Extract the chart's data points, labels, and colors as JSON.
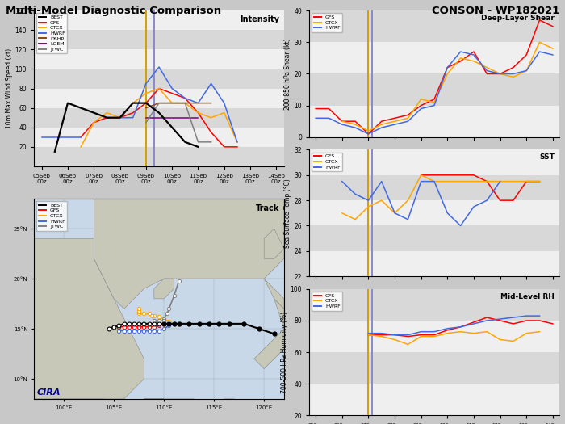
{
  "title_left": "Multi-Model Diagnostic Comparison",
  "title_right": "CONSON - WP182021",
  "x_labels": [
    "05Sep\n00z",
    "06Sep\n00z",
    "07Sep\n00z",
    "08Sep\n00z",
    "09Sep\n00z",
    "10Sep\n00z",
    "11Sep\n00z",
    "12Sep\n00z",
    "13Sep\n00z",
    "14Sep\n00z"
  ],
  "vline_gold": 4.0,
  "vline_blue": 4.3,
  "intensity": {
    "ylabel": "10m Max Wind Speed (kt)",
    "ylim": [
      0,
      160
    ],
    "yticks": [
      20,
      40,
      60,
      80,
      100,
      120,
      140,
      160
    ],
    "x_step": 0.5,
    "BEST": [
      null,
      15,
      65,
      60,
      55,
      50,
      50,
      65,
      65,
      55,
      40,
      25,
      20,
      null,
      null,
      null,
      null,
      null,
      null
    ],
    "GFS": [
      null,
      null,
      null,
      30,
      45,
      50,
      50,
      55,
      65,
      80,
      75,
      70,
      55,
      35,
      20,
      20,
      null,
      null,
      null
    ],
    "CTCX": [
      null,
      null,
      null,
      20,
      45,
      55,
      50,
      65,
      75,
      80,
      65,
      65,
      55,
      50,
      55,
      25,
      null,
      null,
      null
    ],
    "HWRF": [
      30,
      30,
      30,
      30,
      null,
      null,
      50,
      50,
      85,
      102,
      80,
      70,
      65,
      85,
      65,
      25,
      null,
      null,
      null
    ],
    "DSHP": [
      null,
      null,
      null,
      null,
      null,
      null,
      null,
      null,
      60,
      65,
      65,
      65,
      65,
      65,
      null,
      null,
      null,
      null,
      null
    ],
    "LGEM": [
      null,
      null,
      null,
      null,
      null,
      null,
      null,
      null,
      50,
      50,
      50,
      50,
      50,
      null,
      null,
      null,
      null,
      null,
      null
    ],
    "JTWC": [
      null,
      null,
      null,
      null,
      null,
      null,
      null,
      null,
      45,
      65,
      65,
      65,
      25,
      25,
      null,
      null,
      null,
      null,
      null
    ]
  },
  "shear": {
    "ylabel": "200-850 hPa Shear (kt)",
    "ylim": [
      0,
      40
    ],
    "yticks": [
      0,
      10,
      20,
      30,
      40
    ],
    "n_pts": 19,
    "GFS": [
      9,
      9,
      5,
      5,
      1,
      5,
      6,
      7,
      10,
      12,
      22,
      24,
      27,
      20,
      20,
      22,
      26,
      37,
      35
    ],
    "CTCX": [
      null,
      null,
      5,
      4,
      2,
      4,
      5,
      6,
      12,
      11,
      20,
      25,
      24,
      22,
      20,
      19,
      21,
      30,
      28
    ],
    "HWRF": [
      6,
      6,
      4,
      3,
      1,
      3,
      4,
      5,
      9,
      10,
      22,
      27,
      26,
      21,
      20,
      20,
      21,
      27,
      26
    ]
  },
  "sst": {
    "ylabel": "Sea Surface Temp (°C)",
    "ylim": [
      22,
      32
    ],
    "yticks": [
      22,
      24,
      26,
      28,
      30,
      32
    ],
    "n_pts": 19,
    "GFS": [
      null,
      null,
      null,
      null,
      null,
      null,
      null,
      null,
      30.0,
      30.0,
      30.0,
      30.0,
      30.0,
      29.5,
      28.0,
      28.0,
      29.5,
      29.5,
      null
    ],
    "CTCX": [
      null,
      null,
      27.0,
      26.5,
      27.5,
      28.0,
      27.0,
      28.0,
      30.0,
      29.5,
      29.5,
      29.5,
      29.5,
      29.5,
      29.5,
      29.5,
      29.5,
      29.5,
      null
    ],
    "HWRF": [
      null,
      null,
      29.5,
      28.5,
      28.0,
      29.5,
      27.0,
      26.5,
      29.5,
      29.5,
      27.0,
      26.0,
      27.5,
      28.0,
      29.5,
      null,
      null,
      null,
      null
    ]
  },
  "rh": {
    "ylabel": "700-500 hPa Humidity (%)",
    "ylim": [
      20,
      100
    ],
    "yticks": [
      20,
      40,
      60,
      80,
      100
    ],
    "n_pts": 19,
    "GFS": [
      null,
      null,
      null,
      null,
      71,
      71,
      71,
      70,
      71,
      71,
      74,
      76,
      79,
      82,
      80,
      78,
      80,
      80,
      78
    ],
    "CTCX": [
      null,
      null,
      null,
      null,
      71,
      70,
      68,
      65,
      70,
      70,
      72,
      73,
      72,
      73,
      68,
      67,
      72,
      73,
      null
    ],
    "HWRF": [
      null,
      null,
      null,
      null,
      72,
      72,
      71,
      71,
      73,
      73,
      75,
      76,
      78,
      80,
      81,
      82,
      83,
      83,
      null
    ]
  },
  "colors": {
    "BEST": "#000000",
    "GFS": "#ff0000",
    "CTCX": "#ffa500",
    "HWRF": "#4169e1",
    "DSHP": "#8b4513",
    "LGEM": "#800080",
    "JTWC": "#808080"
  },
  "map_extent": [
    97,
    122,
    8,
    28
  ],
  "map_lat_ticks": [
    10,
    15,
    20,
    25
  ],
  "map_lon_ticks": [
    100,
    105,
    110,
    115,
    120
  ],
  "track": {
    "BEST_lon": [
      121.0,
      119.5,
      118.0,
      116.5,
      115.5,
      114.5,
      113.5,
      112.5,
      111.5,
      111.0,
      110.5,
      110.0,
      109.5,
      109.0,
      108.5,
      108.0,
      107.5,
      107.0,
      106.5,
      106.0,
      105.5,
      105.0,
      104.5
    ],
    "BEST_lat": [
      14.5,
      15.0,
      15.5,
      15.5,
      15.5,
      15.5,
      15.5,
      15.5,
      15.5,
      15.5,
      15.5,
      15.5,
      15.5,
      15.5,
      15.5,
      15.5,
      15.5,
      15.5,
      15.5,
      15.5,
      15.3,
      15.2,
      15.0
    ],
    "BEST_open": [
      0,
      0,
      0,
      0,
      0,
      0,
      0,
      0,
      0,
      0,
      0,
      0,
      1,
      1,
      1,
      1,
      1,
      1,
      1,
      1,
      1,
      1,
      1
    ],
    "GFS_lon": [
      111.0,
      110.5,
      110.0,
      109.5,
      109.0,
      108.5,
      108.0,
      107.5,
      107.0,
      106.5,
      106.0,
      105.5,
      105.5,
      105.5
    ],
    "GFS_lat": [
      15.5,
      15.5,
      15.5,
      15.3,
      15.2,
      15.2,
      15.2,
      15.2,
      15.2,
      15.2,
      15.2,
      15.2,
      15.2,
      15.2
    ],
    "CTCX_lon": [
      111.0,
      110.5,
      110.0,
      109.5,
      109.0,
      108.8,
      108.5,
      108.0,
      107.5,
      107.5,
      107.5,
      107.5
    ],
    "CTCX_lat": [
      15.5,
      15.7,
      16.0,
      16.2,
      16.3,
      16.3,
      16.5,
      16.5,
      16.5,
      16.7,
      16.8,
      17.0
    ],
    "HWRF_lon": [
      111.0,
      110.5,
      110.0,
      109.5,
      109.0,
      108.5,
      108.0,
      107.5,
      107.0,
      106.5,
      106.0,
      105.5
    ],
    "HWRF_lat": [
      15.5,
      15.3,
      15.0,
      14.8,
      14.8,
      14.8,
      14.8,
      14.8,
      14.8,
      14.8,
      14.8,
      14.8
    ],
    "JTWC_lon": [
      111.5,
      111.0,
      110.5,
      110.3,
      110.0,
      110.0,
      110.0,
      110.0,
      109.5,
      109.0,
      109.0
    ],
    "JTWC_lat": [
      19.8,
      18.3,
      17.0,
      16.5,
      16.0,
      15.8,
      15.8,
      15.8,
      15.8,
      15.8,
      15.8
    ],
    "GFS_open": [
      1,
      1,
      1,
      1,
      1,
      1,
      1,
      1,
      1,
      1,
      1,
      1,
      1,
      1
    ],
    "CTCX_open": [
      1,
      1,
      1,
      1,
      1,
      1,
      1,
      1,
      1,
      1,
      1,
      1
    ],
    "HWRF_open": [
      1,
      1,
      1,
      1,
      1,
      1,
      1,
      1,
      1,
      1,
      1,
      1
    ],
    "JTWC_open": [
      1,
      1,
      1,
      1,
      1,
      1,
      1,
      1,
      1,
      1,
      1
    ]
  },
  "cira_color": "#00008b",
  "bg_color": "#c8c8c8",
  "panel_bg": "#d8d8d8",
  "band_color_light": "#ffffff",
  "band_alpha": 0.6
}
